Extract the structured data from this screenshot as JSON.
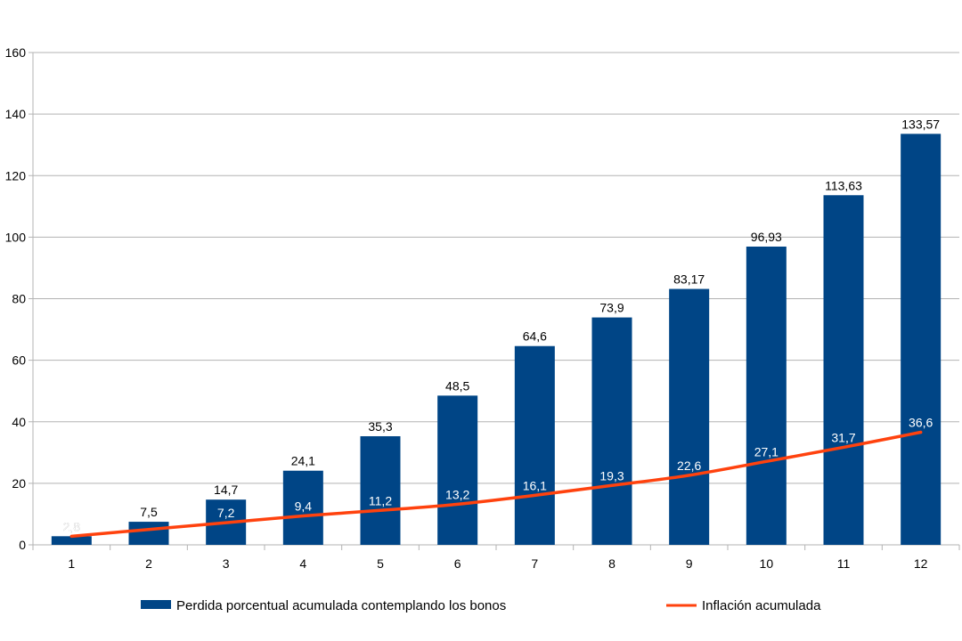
{
  "chart_data": {
    "type": "bar",
    "categories": [
      "1",
      "2",
      "3",
      "4",
      "5",
      "6",
      "7",
      "8",
      "9",
      "10",
      "11",
      "12"
    ],
    "series": [
      {
        "name": "Perdida porcentual acumulada contemplando los bonos",
        "type": "bar",
        "color": "#004586",
        "values": [
          2.8,
          7.5,
          14.7,
          24.1,
          35.3,
          48.5,
          64.6,
          73.9,
          83.17,
          96.93,
          113.63,
          133.57
        ],
        "labels": [
          "2,8",
          "7,5",
          "14,7",
          "24,1",
          "35,3",
          "48,5",
          "64,6",
          "73,9",
          "83,17",
          "96,93",
          "113,63",
          "133,57"
        ]
      },
      {
        "name": "Inflación acumulada",
        "type": "line",
        "color": "#ff420e",
        "values": [
          2.8,
          5.0,
          7.2,
          9.4,
          11.2,
          13.2,
          16.1,
          19.3,
          22.6,
          27.1,
          31.7,
          36.6
        ],
        "labels": [
          "2,8",
          "",
          "7,2",
          "9,4",
          "11,2",
          "13,2",
          "16,1",
          "19,3",
          "22,6",
          "27,1",
          "31,7",
          "36,6"
        ]
      }
    ],
    "yticks": [
      "0",
      "20",
      "40",
      "60",
      "80",
      "100",
      "120",
      "140",
      "160"
    ],
    "ylim": [
      0,
      160
    ],
    "grid": true,
    "legend_position": "bottom"
  }
}
